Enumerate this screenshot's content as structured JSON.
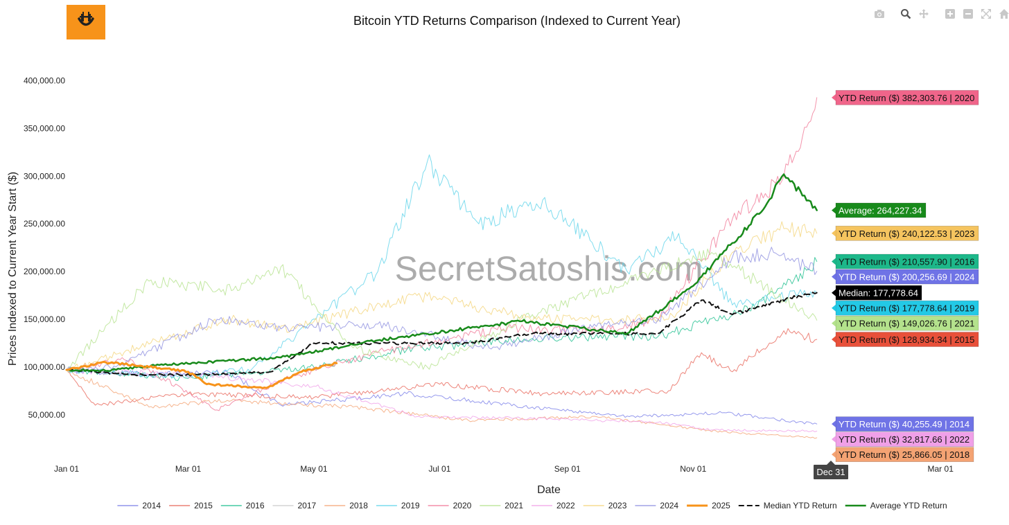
{
  "logo": {
    "name": "secretsatoshis-logo",
    "bg_color": "#f7931a"
  },
  "toolbar": {
    "icons": [
      "camera-icon",
      "zoom-icon",
      "pan-icon",
      "zoom-in-icon",
      "zoom-out-icon",
      "autoscale-icon",
      "reset-axes-icon"
    ]
  },
  "watermark": "SecretSatoshis.com",
  "hover": {
    "x_label": "Dec 31"
  },
  "chart_data": {
    "type": "line",
    "title": "Bitcoin YTD Returns Comparison (Indexed to Current Year)",
    "xlabel": "Date",
    "ylabel": "Prices Indexed to Current Year Start ($)",
    "xlim": [
      "2025-01-01",
      "2026-03-09"
    ],
    "ylim": [
      7000,
      412000
    ],
    "x_ticks": [
      {
        "label": "Jan 01",
        "date": "2025-01-01"
      },
      {
        "label": "Mar 01",
        "date": "2025-03-01"
      },
      {
        "label": "May 01",
        "date": "2025-05-01"
      },
      {
        "label": "Jul 01",
        "date": "2025-07-01"
      },
      {
        "label": "Sep 01",
        "date": "2025-09-01"
      },
      {
        "label": "Nov 01",
        "date": "2025-11-01"
      },
      {
        "label": "Mar 01",
        "date": "2026-03-01"
      }
    ],
    "y_ticks": [
      {
        "label": "50,000.00",
        "value": 50000
      },
      {
        "label": "100,000.00",
        "value": 100000
      },
      {
        "label": "150,000.00",
        "value": 150000
      },
      {
        "label": "200,000.00",
        "value": 200000
      },
      {
        "label": "250,000.00",
        "value": 250000
      },
      {
        "label": "300,000.00",
        "value": 300000
      },
      {
        "label": "350,000.00",
        "value": 350000
      },
      {
        "label": "400,000.00",
        "value": 400000
      }
    ],
    "grid": false,
    "legend_position": "bottom",
    "series": [
      {
        "name": "2014",
        "color": "#7b7fe8",
        "width": 1,
        "dash": "",
        "x": [
          "2025-01-01",
          "2025-02-10",
          "2025-03-20",
          "2025-04-15",
          "2025-06-15",
          "2025-08-15",
          "2025-10-01",
          "2025-11-15",
          "2025-12-31"
        ],
        "y": [
          97000,
          92000,
          95000,
          60000,
          72000,
          58000,
          48000,
          52000,
          40255
        ]
      },
      {
        "name": "2015",
        "color": "#e8675a",
        "width": 1,
        "dash": "",
        "x": [
          "2025-01-01",
          "2025-01-15",
          "2025-03-01",
          "2025-05-01",
          "2025-07-01",
          "2025-08-20",
          "2025-10-20",
          "2025-11-05",
          "2025-11-20",
          "2025-12-15",
          "2025-12-31"
        ],
        "y": [
          97000,
          60000,
          72000,
          68000,
          82000,
          72000,
          75000,
          115000,
          95000,
          138000,
          128934
        ]
      },
      {
        "name": "2016",
        "color": "#1fbf8f",
        "width": 1,
        "dash": "",
        "x": [
          "2025-01-01",
          "2025-03-01",
          "2025-05-01",
          "2025-06-15",
          "2025-08-15",
          "2025-10-15",
          "2025-12-01",
          "2025-12-31"
        ],
        "y": [
          97000,
          88000,
          100000,
          118000,
          130000,
          132000,
          162000,
          210558
        ]
      },
      {
        "name": "2017",
        "color": "#c9c9c9",
        "width": 1,
        "dash": "",
        "x": [],
        "y": []
      },
      {
        "name": "2018",
        "color": "#f4a373",
        "width": 1,
        "dash": "",
        "x": [
          "2025-01-01",
          "2025-02-10",
          "2025-03-20",
          "2025-05-20",
          "2025-07-15",
          "2025-09-15",
          "2025-11-15",
          "2025-12-31"
        ],
        "y": [
          97000,
          58000,
          65000,
          58000,
          44000,
          48000,
          32000,
          25866
        ]
      },
      {
        "name": "2019",
        "color": "#5fd3ea",
        "width": 1,
        "dash": "",
        "x": [
          "2025-01-01",
          "2025-03-01",
          "2025-04-01",
          "2025-06-01",
          "2025-06-25",
          "2025-07-20",
          "2025-08-20",
          "2025-09-30",
          "2025-10-25",
          "2025-11-20",
          "2025-12-31"
        ],
        "y": [
          97000,
          90000,
          98000,
          200000,
          315000,
          250000,
          275000,
          200000,
          240000,
          165000,
          177779
        ]
      },
      {
        "name": "2020",
        "color": "#f07896",
        "width": 1,
        "dash": "",
        "x": [
          "2025-01-01",
          "2025-02-01",
          "2025-03-15",
          "2025-04-20",
          "2025-06-01",
          "2025-08-01",
          "2025-09-15",
          "2025-10-15",
          "2025-11-20",
          "2025-12-15",
          "2025-12-31"
        ],
        "y": [
          97000,
          108000,
          55000,
          90000,
          115000,
          140000,
          138000,
          150000,
          255000,
          300000,
          382304
        ]
      },
      {
        "name": "2021",
        "color": "#b4e28c",
        "width": 1,
        "dash": "",
        "x": [
          "2025-01-01",
          "2025-02-10",
          "2025-03-25",
          "2025-04-15",
          "2025-05-20",
          "2025-06-25",
          "2025-08-15",
          "2025-10-15",
          "2025-11-10",
          "2025-12-31"
        ],
        "y": [
          97000,
          190000,
          180000,
          205000,
          120000,
          100000,
          155000,
          200000,
          220000,
          149027
        ]
      },
      {
        "name": "2022",
        "color": "#f0a0e8",
        "width": 1,
        "dash": "",
        "x": [
          "2025-01-01",
          "2025-03-15",
          "2025-05-01",
          "2025-06-20",
          "2025-08-15",
          "2025-10-15",
          "2025-11-10",
          "2025-12-31"
        ],
        "y": [
          97000,
          90000,
          80000,
          48000,
          46000,
          42000,
          34000,
          32818
        ]
      },
      {
        "name": "2023",
        "color": "#f4d47a",
        "width": 1,
        "dash": "",
        "x": [
          "2025-01-01",
          "2025-03-20",
          "2025-04-20",
          "2025-06-20",
          "2025-08-20",
          "2025-10-20",
          "2025-11-20",
          "2025-12-15",
          "2025-12-31"
        ],
        "y": [
          97000,
          150000,
          140000,
          175000,
          150000,
          150000,
          220000,
          245000,
          240123
        ]
      },
      {
        "name": "2024",
        "color": "#8d8fe0",
        "width": 1,
        "dash": "",
        "x": [
          "2025-01-01",
          "2025-01-25",
          "2025-03-15",
          "2025-04-15",
          "2025-06-01",
          "2025-07-25",
          "2025-09-10",
          "2025-10-15",
          "2025-11-20",
          "2025-12-10",
          "2025-12-31"
        ],
        "y": [
          97000,
          100000,
          150000,
          140000,
          145000,
          120000,
          140000,
          150000,
          215000,
          220000,
          200257
        ]
      },
      {
        "name": "2025",
        "color": "#f7931a",
        "width": 3,
        "dash": "",
        "x": [
          "2025-01-01",
          "2025-01-20",
          "2025-02-10",
          "2025-03-01",
          "2025-03-10",
          "2025-04-08",
          "2025-04-25",
          "2025-05-12"
        ],
        "y": [
          97000,
          105000,
          100000,
          95000,
          82000,
          78000,
          95000,
          104000
        ]
      },
      {
        "name": "Median YTD Return",
        "color": "#111111",
        "width": 2,
        "dash": "9,5",
        "x": [
          "2025-01-01",
          "2025-02-01",
          "2025-03-10",
          "2025-04-10",
          "2025-05-01",
          "2025-06-01",
          "2025-07-15",
          "2025-08-15",
          "2025-09-25",
          "2025-10-15",
          "2025-11-05",
          "2025-11-20",
          "2025-12-10",
          "2025-12-31"
        ],
        "y": [
          97000,
          92000,
          92000,
          95000,
          125000,
          125000,
          125000,
          135000,
          135000,
          135000,
          170000,
          155000,
          168000,
          177779
        ]
      },
      {
        "name": "Average YTD Return",
        "color": "#188a1b",
        "width": 2.5,
        "dash": "",
        "x": [
          "2025-01-01",
          "2025-01-20",
          "2025-02-15",
          "2025-04-15",
          "2025-06-01",
          "2025-08-10",
          "2025-09-30",
          "2025-11-01",
          "2025-11-20",
          "2025-12-05",
          "2025-12-15",
          "2025-12-31"
        ],
        "y": [
          97000,
          96000,
          102000,
          110000,
          128000,
          148000,
          135000,
          185000,
          230000,
          265000,
          302000,
          264227
        ]
      }
    ],
    "annotations": [
      {
        "text": "YTD Return ($) 382,303.76 | 2020",
        "y": 382304,
        "color": "#f0658a",
        "text_color": "#111111"
      },
      {
        "text": "Average: 264,227.34",
        "y": 264227,
        "color": "#188a1b",
        "text_color": "#ffffff"
      },
      {
        "text": "YTD Return ($) 240,122.53 | 2023",
        "y": 240123,
        "color": "#f5c45f",
        "text_color": "#111111"
      },
      {
        "text": "YTD Return ($) 210,557.90 | 2016",
        "y": 210558,
        "color": "#1db88a",
        "text_color": "#111111"
      },
      {
        "text": "YTD Return ($) 200,256.69 | 2024",
        "y": 200257,
        "color": "#6f73e6",
        "text_color": "#ffffff"
      },
      {
        "text": "Median: 177,778.64",
        "y": 177779,
        "color": "#000000",
        "text_color": "#ffffff"
      },
      {
        "text": "YTD Return ($) 177,778.64 | 2019",
        "y": 177779,
        "color": "#23c9e6",
        "text_color": "#111111"
      },
      {
        "text": "YTD Return ($) 149,026.76 | 2021",
        "y": 149027,
        "color": "#b4e28c",
        "text_color": "#111111"
      },
      {
        "text": "YTD Return ($) 128,934.34 | 2015",
        "y": 128934,
        "color": "#e8503a",
        "text_color": "#111111"
      },
      {
        "text": "YTD Return ($) 40,255.49 | 2014",
        "y": 40255,
        "color": "#6f73e6",
        "text_color": "#ffffff"
      },
      {
        "text": "YTD Return ($) 32,817.66 | 2022",
        "y": 32818,
        "color": "#f0a0e8",
        "text_color": "#111111"
      },
      {
        "text": "YTD Return ($) 25,866.05 | 2018",
        "y": 25866,
        "color": "#f4a373",
        "text_color": "#111111"
      }
    ]
  }
}
